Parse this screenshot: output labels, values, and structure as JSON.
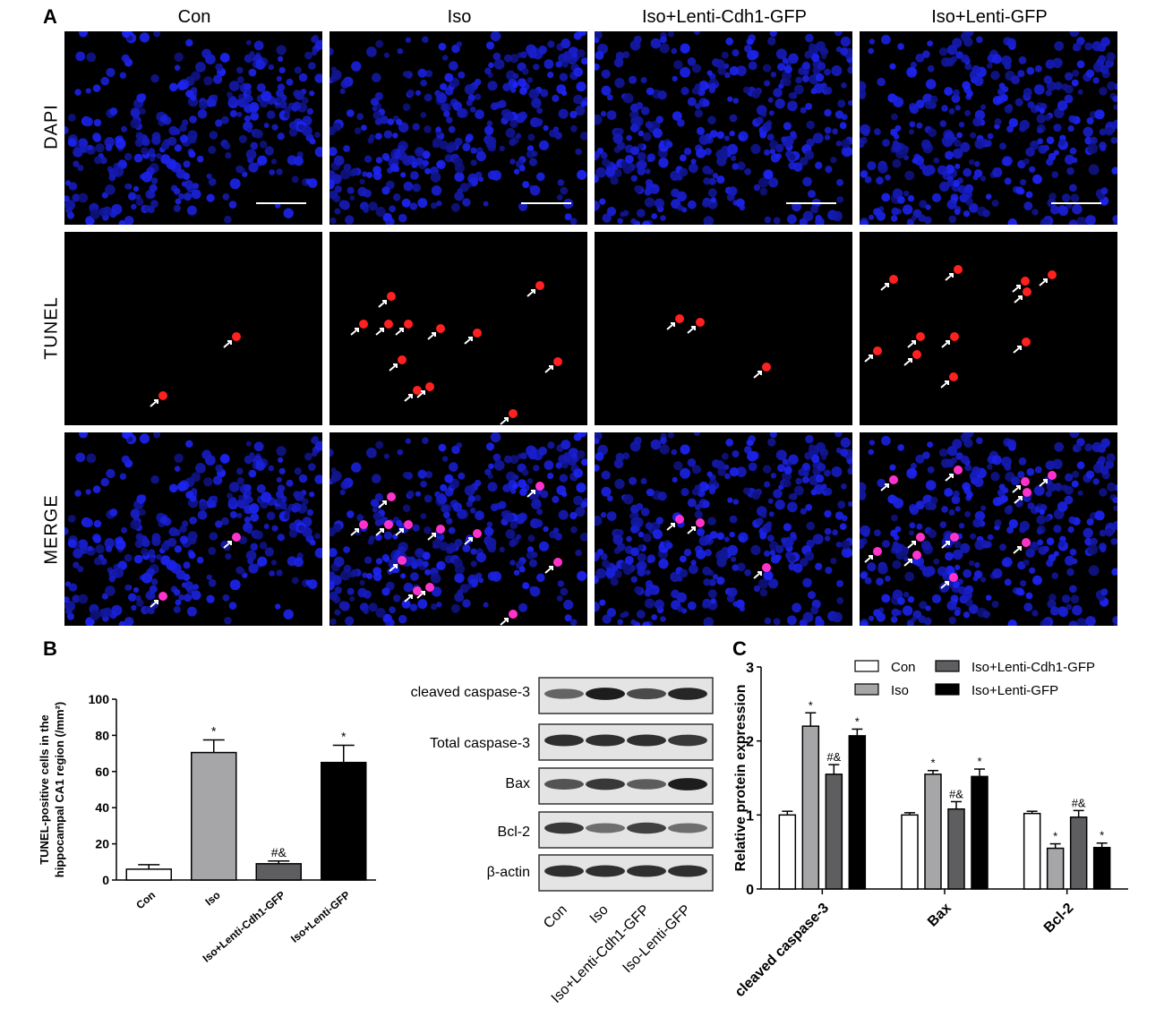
{
  "panel_labels": {
    "a": "A",
    "b": "B",
    "c": "C"
  },
  "micrograph": {
    "columns": [
      "Con",
      "Iso",
      "Iso+Lenti-Cdh1-GFP",
      "Iso+Lenti-GFP"
    ],
    "rows": [
      "DAPI",
      "TUNEL",
      "MERGE"
    ]
  },
  "western_blot": {
    "rows": [
      "cleaved caspase-3",
      "Total caspase-3",
      "Bax",
      "Bcl-2",
      "β-actin"
    ],
    "lanes": [
      "Con",
      "Iso",
      "Iso+Lenti-Cdh1-GFP",
      "Iso-Lenti-GFP"
    ]
  },
  "chart_data": [
    {
      "type": "bar",
      "categories": [
        "Con",
        "Iso",
        "Iso+Lenti-Cdh1-GFP",
        "Iso+Lenti-GFP"
      ],
      "values": [
        6,
        70.5,
        9,
        65
      ],
      "errors": [
        2.5,
        7,
        1.5,
        9.5
      ],
      "annotations": [
        "",
        "*",
        "#&",
        "*"
      ],
      "colors": [
        "#ffffff",
        "#a6a6a8",
        "#5e5e60",
        "#000000"
      ],
      "ylabel": "TUNEL-positive cells in the hippocampal CA1 region (/mm²)",
      "ylim": [
        0,
        100
      ],
      "yticks": [
        0,
        20,
        40,
        60,
        80,
        100
      ]
    },
    {
      "type": "bar",
      "categories": [
        "cleaved caspase-3",
        "Bax",
        "Bcl-2"
      ],
      "series": [
        {
          "name": "Con",
          "values": [
            1.0,
            1.0,
            1.02
          ],
          "errors": [
            0.05,
            0.03,
            0.03
          ],
          "annotations": [
            "",
            "",
            ""
          ],
          "color": "#ffffff"
        },
        {
          "name": "Iso",
          "values": [
            2.2,
            1.55,
            0.55
          ],
          "errors": [
            0.18,
            0.05,
            0.06
          ],
          "annotations": [
            "*",
            "*",
            "*"
          ],
          "color": "#a6a6a8"
        },
        {
          "name": "Iso+Lenti-Cdh1-GFP",
          "values": [
            1.55,
            1.08,
            0.97
          ],
          "errors": [
            0.13,
            0.1,
            0.09
          ],
          "annotations": [
            "#&",
            "#&",
            "#&"
          ],
          "color": "#5e5e60"
        },
        {
          "name": "Iso+Lenti-GFP",
          "values": [
            2.07,
            1.52,
            0.56
          ],
          "errors": [
            0.09,
            0.1,
            0.06
          ],
          "annotations": [
            "*",
            "*",
            "*"
          ],
          "color": "#000000"
        }
      ],
      "ylabel": "Relative protein expression",
      "ylim": [
        0,
        3
      ],
      "yticks": [
        0,
        1,
        2,
        3
      ],
      "legend": "top-right"
    }
  ]
}
